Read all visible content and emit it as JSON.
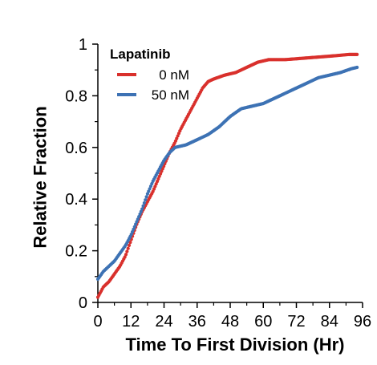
{
  "chart_data": {
    "type": "scatter",
    "title": "",
    "xlabel": "Time To First Division (Hr)",
    "ylabel": "Relative Fraction",
    "xlim": [
      0,
      96
    ],
    "ylim": [
      0,
      1
    ],
    "x_ticks": [
      0,
      12,
      24,
      36,
      48,
      60,
      72,
      84,
      96
    ],
    "y_ticks": [
      0,
      0.2,
      0.4,
      0.6,
      0.8,
      1
    ],
    "y_tick_labels": [
      "0",
      "0.2",
      "0.4",
      "0.6",
      "0.8",
      "1"
    ],
    "grid": false,
    "legend": {
      "title": "Lapatinib",
      "placement": "top-left"
    },
    "series": [
      {
        "name": "0 nM",
        "color": "#d9302c",
        "points": [
          [
            0,
            0.02
          ],
          [
            1,
            0.04
          ],
          [
            2,
            0.06
          ],
          [
            4,
            0.08
          ],
          [
            6,
            0.11
          ],
          [
            8,
            0.14
          ],
          [
            10,
            0.18
          ],
          [
            12,
            0.24
          ],
          [
            14,
            0.3
          ],
          [
            16,
            0.35
          ],
          [
            18,
            0.39
          ],
          [
            20,
            0.43
          ],
          [
            22,
            0.48
          ],
          [
            24,
            0.53
          ],
          [
            26,
            0.58
          ],
          [
            28,
            0.62
          ],
          [
            30,
            0.67
          ],
          [
            32,
            0.71
          ],
          [
            34,
            0.75
          ],
          [
            36,
            0.79
          ],
          [
            38,
            0.83
          ],
          [
            40,
            0.855
          ],
          [
            42,
            0.865
          ],
          [
            46,
            0.88
          ],
          [
            50,
            0.89
          ],
          [
            54,
            0.91
          ],
          [
            58,
            0.93
          ],
          [
            62,
            0.94
          ],
          [
            68,
            0.94
          ],
          [
            74,
            0.945
          ],
          [
            80,
            0.95
          ],
          [
            86,
            0.955
          ],
          [
            91,
            0.96
          ],
          [
            94,
            0.96
          ]
        ]
      },
      {
        "name": "50 nM",
        "color": "#3d72b4",
        "points": [
          [
            0,
            0.09
          ],
          [
            2,
            0.12
          ],
          [
            4,
            0.14
          ],
          [
            6,
            0.16
          ],
          [
            8,
            0.19
          ],
          [
            10,
            0.22
          ],
          [
            12,
            0.26
          ],
          [
            14,
            0.31
          ],
          [
            16,
            0.36
          ],
          [
            18,
            0.42
          ],
          [
            20,
            0.47
          ],
          [
            22,
            0.51
          ],
          [
            24,
            0.55
          ],
          [
            26,
            0.58
          ],
          [
            28,
            0.6
          ],
          [
            32,
            0.61
          ],
          [
            36,
            0.63
          ],
          [
            40,
            0.65
          ],
          [
            44,
            0.68
          ],
          [
            48,
            0.72
          ],
          [
            52,
            0.75
          ],
          [
            56,
            0.76
          ],
          [
            60,
            0.77
          ],
          [
            64,
            0.79
          ],
          [
            68,
            0.81
          ],
          [
            72,
            0.83
          ],
          [
            76,
            0.85
          ],
          [
            80,
            0.87
          ],
          [
            84,
            0.88
          ],
          [
            88,
            0.89
          ],
          [
            92,
            0.905
          ],
          [
            94,
            0.91
          ]
        ]
      }
    ]
  }
}
